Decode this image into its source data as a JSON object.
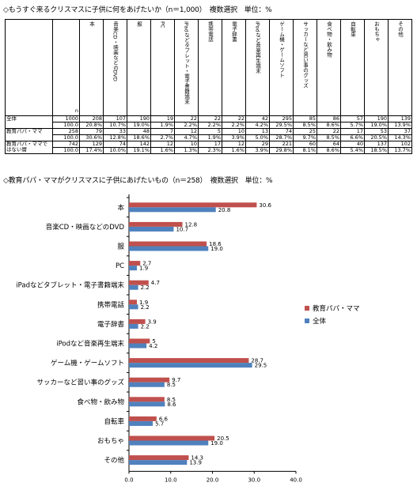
{
  "title1": "◇もうすぐ来るクリスマスに子供に何をあげたいか（n＝1,000）　複数選択　単位：%",
  "table": {
    "n_header": "n",
    "headers": [
      "本",
      "音楽CD・映画などのDVD",
      "服",
      "PC",
      "iPadなどタブレット・電子書籍端末",
      "携帯電話",
      "電子辞書",
      "iPodなど音楽再生端末",
      "ゲーム機・ゲームソフト",
      "サッカーなど習い事のグッズ",
      "食べ物・飲み物",
      "自転車",
      "おもちゃ",
      "その他"
    ],
    "rows": [
      {
        "label": "全体",
        "n": "1000",
        "n_pct": "100.0",
        "counts": [
          "208",
          "107",
          "190",
          "19",
          "22",
          "22",
          "22",
          "42",
          "295",
          "85",
          "86",
          "57",
          "190",
          "139"
        ],
        "pcts": [
          "20.8%",
          "10.7%",
          "19.0%",
          "1.9%",
          "2.2%",
          "2.2%",
          "2.2%",
          "4.2%",
          "29.5%",
          "8.5%",
          "8.6%",
          "5.7%",
          "19.0%",
          "13.9%"
        ]
      },
      {
        "label": "教育パパ・ママ",
        "n": "258",
        "n_pct": "100.0",
        "counts": [
          "79",
          "33",
          "48",
          "7",
          "12",
          "5",
          "10",
          "13",
          "74",
          "25",
          "22",
          "17",
          "53",
          "37"
        ],
        "pcts": [
          "30.6%",
          "12.8%",
          "18.6%",
          "2.7%",
          "4.7%",
          "1.9%",
          "3.9%",
          "5.0%",
          "28.7%",
          "9.7%",
          "8.5%",
          "6.6%",
          "20.5%",
          "14.3%"
        ]
      },
      {
        "label": "教育パパ・ママではない層",
        "n": "742",
        "n_pct": "100.0",
        "counts": [
          "129",
          "74",
          "142",
          "12",
          "10",
          "17",
          "12",
          "29",
          "221",
          "60",
          "64",
          "40",
          "137",
          "102"
        ],
        "pcts": [
          "17.4%",
          "10.0%",
          "19.1%",
          "1.6%",
          "1.3%",
          "2.3%",
          "1.6%",
          "3.9%",
          "29.8%",
          "8.1%",
          "8.6%",
          "5.4%",
          "18.5%",
          "13.7%"
        ]
      }
    ]
  },
  "title2": "◇教育パパ・ママがクリスマスに子供にあげたいもの（n＝258）　複数選択　単位：%",
  "chart_data": {
    "type": "bar",
    "orientation": "horizontal",
    "categories": [
      "本",
      "音楽CD・映画などのDVD",
      "服",
      "PC",
      "iPadなどタブレット・電子書籍端末",
      "携帯電話",
      "電子辞書",
      "iPodなど音楽再生端末",
      "ゲーム機・ゲームソフト",
      "サッカーなど習い事のグッズ",
      "食べ物・飲み物",
      "自転車",
      "おもちゃ",
      "その他"
    ],
    "series": [
      {
        "name": "教育パパ・ママ",
        "color": "#c0504d",
        "values": [
          30.6,
          12.8,
          18.6,
          2.7,
          4.7,
          1.9,
          3.9,
          5.0,
          28.7,
          9.7,
          8.5,
          6.6,
          20.5,
          14.3
        ],
        "labels": [
          "30.6",
          "12.8",
          "18.6",
          "2.7",
          "4.7",
          "1.9",
          "3.9",
          "5",
          "28.7",
          "9.7",
          "8.5",
          "6.6",
          "20.5",
          "14.3"
        ]
      },
      {
        "name": "全体",
        "color": "#4f81bd",
        "values": [
          20.8,
          10.7,
          19.0,
          1.9,
          2.2,
          2.2,
          2.2,
          4.2,
          29.5,
          8.5,
          8.6,
          5.7,
          19.0,
          13.9
        ],
        "labels": [
          "20.8",
          "10.7",
          "19.0",
          "1.9",
          "2.2",
          "2.2",
          "2.2",
          "4.2",
          "29.5",
          "8.5",
          "8.6",
          "5.7",
          "19.0",
          "13.9"
        ]
      }
    ],
    "xlim": [
      0,
      40
    ],
    "xticks": [
      "0.0",
      "10.0",
      "20.0",
      "30.0",
      "40.0"
    ],
    "legend_position": "right",
    "grid": false
  }
}
